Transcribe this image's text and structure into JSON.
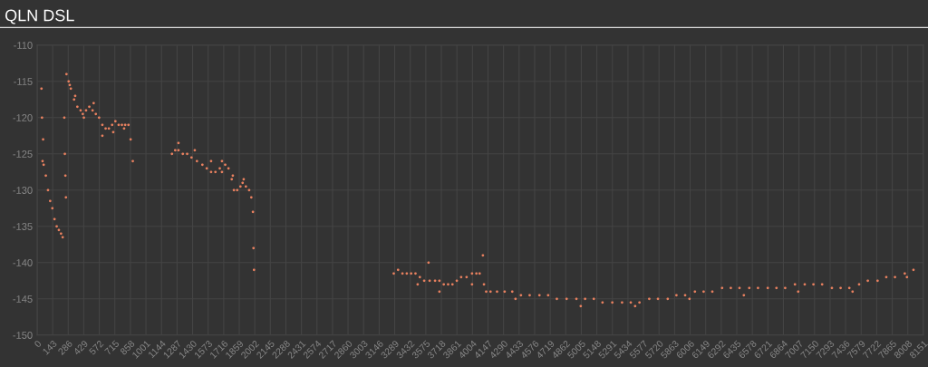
{
  "chart_data": {
    "type": "scatter",
    "title": "QLN DSL",
    "series": [
      {
        "color": "#e8805f",
        "x": [
          40,
          50,
          60,
          80,
          100,
          120,
          140,
          160,
          180,
          200,
          220,
          235,
          45,
          55,
          250,
          255,
          260,
          265,
          270,
          290,
          310,
          340,
          370,
          400,
          420,
          450,
          480,
          510,
          540,
          570,
          600,
          630,
          660,
          690,
          720,
          750,
          780,
          810,
          840,
          860,
          880,
          300,
          350,
          430,
          520,
          600,
          700,
          800,
          1240,
          1270,
          1300,
          1340,
          1380,
          1420,
          1470,
          1520,
          1560,
          1600,
          1640,
          1680,
          1700,
          1730,
          1760,
          1790,
          1810,
          1840,
          1870,
          1890,
          1920,
          1950,
          1970,
          1985,
          1990,
          1995,
          1300,
          1450,
          1600,
          1700,
          1800,
          1900,
          3280,
          3320,
          3360,
          3400,
          3440,
          3480,
          3520,
          3560,
          3610,
          3660,
          3700,
          3740,
          3780,
          3820,
          3860,
          3900,
          3950,
          4000,
          4040,
          4070,
          4110,
          4130,
          4170,
          4230,
          4300,
          4370,
          4450,
          4530,
          4620,
          4700,
          4780,
          4870,
          4960,
          5040,
          5120,
          5200,
          5290,
          5380,
          5460,
          5540,
          5630,
          5710,
          5800,
          5880,
          5960,
          6050,
          6130,
          6210,
          6300,
          6380,
          6460,
          6550,
          6630,
          6720,
          6800,
          6880,
          6970,
          7060,
          7140,
          7220,
          7310,
          7390,
          7470,
          7560,
          7640,
          7730,
          7810,
          7890,
          7980,
          8060,
          3500,
          3700,
          4000,
          4400,
          5000,
          5500,
          6000,
          6500,
          7000,
          7500,
          8000,
          3600,
          4100
        ],
        "values": [
          -116,
          -126,
          -126.5,
          -128,
          -130,
          -131.5,
          -132.5,
          -134,
          -135,
          -135.5,
          -136,
          -136.5,
          -120,
          -123,
          -120,
          -125,
          -128,
          -131,
          -114,
          -115,
          -116,
          -117.5,
          -118.5,
          -119,
          -119.5,
          -119,
          -118.5,
          -119,
          -119.5,
          -120,
          -121,
          -121.5,
          -121.5,
          -121,
          -120.5,
          -121,
          -121,
          -121,
          -121,
          -123,
          -126,
          -115.5,
          -117,
          -120,
          -118,
          -122.5,
          -122,
          -121.5,
          -125,
          -124.5,
          -124.5,
          -125,
          -125,
          -125.5,
          -126,
          -126.5,
          -127,
          -127.5,
          -127.5,
          -127,
          -126,
          -126.5,
          -127,
          -128.5,
          -130,
          -130,
          -129.5,
          -129,
          -129.5,
          -130,
          -131,
          -133,
          -138,
          -141,
          -123.5,
          -124.5,
          -126,
          -127.5,
          -128,
          -128.5,
          -141.5,
          -141,
          -141.5,
          -141.5,
          -141.5,
          -141.5,
          -142,
          -142.5,
          -142.5,
          -142.5,
          -142.5,
          -143,
          -143,
          -143,
          -142.5,
          -142,
          -142,
          -141.5,
          -141.5,
          -141.5,
          -143,
          -144,
          -144,
          -144,
          -144,
          -144,
          -144.5,
          -144.5,
          -144.5,
          -144.5,
          -145,
          -145,
          -145,
          -145,
          -145,
          -145.5,
          -145.5,
          -145.5,
          -145.5,
          -145.5,
          -145,
          -145,
          -145,
          -144.5,
          -144.5,
          -144,
          -144,
          -144,
          -143.5,
          -143.5,
          -143.5,
          -143.5,
          -143.5,
          -143.5,
          -143.5,
          -143.5,
          -143,
          -143,
          -143,
          -143,
          -143.5,
          -143.5,
          -143.5,
          -143,
          -142.5,
          -142.5,
          -142,
          -142,
          -141.5,
          -141,
          -143,
          -144,
          -143,
          -145,
          -146,
          -146,
          -145,
          -144.5,
          -144,
          -144,
          -142,
          -140,
          -139
        ]
      }
    ],
    "xlim": [
      0,
      8151
    ],
    "xticks": [
      0,
      143,
      286,
      429,
      572,
      715,
      858,
      1001,
      1144,
      1287,
      1430,
      1573,
      1716,
      1859,
      2002,
      2145,
      2288,
      2431,
      2574,
      2717,
      2860,
      3003,
      3146,
      3289,
      3432,
      3575,
      3718,
      3861,
      4004,
      4147,
      4290,
      4433,
      4576,
      4719,
      4862,
      5005,
      5148,
      5291,
      5434,
      5577,
      5720,
      5863,
      6006,
      6149,
      6292,
      6435,
      6578,
      6721,
      6864,
      7007,
      7150,
      7293,
      7436,
      7579,
      7722,
      7865,
      8008,
      8151
    ],
    "ylim": [
      -150,
      -110
    ],
    "yticks": [
      -150,
      -145,
      -140,
      -135,
      -130,
      -125,
      -120,
      -115,
      -110
    ],
    "grid": true,
    "marker": "circle"
  }
}
